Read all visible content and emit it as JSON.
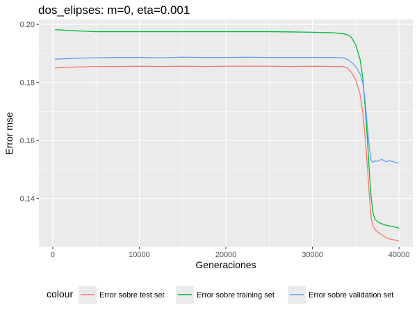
{
  "chart_data": {
    "type": "line",
    "title": "dos_elipses: m=0, eta=0.001",
    "xlabel": "Generaciones",
    "ylabel": "Error mse",
    "xlim": [
      -1600,
      41600
    ],
    "ylim": [
      0.1234,
      0.2017
    ],
    "x_ticks": [
      0,
      10000,
      20000,
      30000,
      40000
    ],
    "x_tick_labels": [
      "0",
      "10000",
      "20000",
      "30000",
      "40000"
    ],
    "y_ticks": [
      0.14,
      0.16,
      0.18,
      0.2
    ],
    "y_tick_labels": [
      "0.14",
      "0.16",
      "0.18",
      "0.20"
    ],
    "grid": true,
    "legend_title": "colour",
    "legend_position": "bottom",
    "series": [
      {
        "name": "Error sobre test set",
        "color": "#F8766D",
        "x": [
          250,
          2500,
          5000,
          7500,
          10000,
          12500,
          15000,
          17500,
          20000,
          22500,
          25000,
          27500,
          30000,
          32500,
          33500,
          34000,
          34500,
          35000,
          35500,
          35800,
          36000,
          36200,
          36400,
          36600,
          36800,
          37000,
          37200,
          37500,
          38000,
          38500,
          39000,
          39500,
          40000
        ],
        "y": [
          0.185,
          0.1853,
          0.1855,
          0.1855,
          0.1856,
          0.1855,
          0.1856,
          0.1855,
          0.1856,
          0.1856,
          0.1856,
          0.1855,
          0.1856,
          0.1855,
          0.1855,
          0.185,
          0.1835,
          0.181,
          0.176,
          0.17,
          0.164,
          0.157,
          0.149,
          0.14,
          0.133,
          0.1305,
          0.1295,
          0.1285,
          0.1275,
          0.1265,
          0.126,
          0.1257,
          0.1253
        ]
      },
      {
        "name": "Error sobre training set",
        "color": "#00BA38",
        "x": [
          250,
          2500,
          5000,
          7500,
          10000,
          12500,
          15000,
          17500,
          20000,
          22500,
          25000,
          27500,
          30000,
          32500,
          33500,
          34000,
          34500,
          35000,
          35500,
          35800,
          36000,
          36200,
          36400,
          36600,
          36800,
          37000,
          37200,
          37500,
          38000,
          38500,
          39000,
          39500,
          40000
        ],
        "y": [
          0.1982,
          0.1978,
          0.1975,
          0.1975,
          0.1975,
          0.1975,
          0.1975,
          0.1975,
          0.1975,
          0.1975,
          0.1975,
          0.1974,
          0.1973,
          0.1971,
          0.1968,
          0.1965,
          0.1955,
          0.193,
          0.188,
          0.182,
          0.175,
          0.167,
          0.158,
          0.148,
          0.14,
          0.135,
          0.133,
          0.132,
          0.1313,
          0.1308,
          0.1305,
          0.1302,
          0.1298
        ]
      },
      {
        "name": "Error sobre validation set",
        "color": "#619CFF",
        "x": [
          250,
          2500,
          5000,
          7500,
          10000,
          12500,
          15000,
          17500,
          20000,
          22500,
          25000,
          27500,
          30000,
          32500,
          33500,
          34000,
          34500,
          35000,
          35500,
          35800,
          36000,
          36200,
          36400,
          36600,
          36800,
          37000,
          37200,
          37500,
          38000,
          38500,
          39000,
          39500,
          40000
        ],
        "y": [
          0.188,
          0.1883,
          0.1885,
          0.1886,
          0.1886,
          0.1885,
          0.1887,
          0.1886,
          0.1886,
          0.1887,
          0.1886,
          0.1886,
          0.1886,
          0.1886,
          0.1885,
          0.188,
          0.187,
          0.1855,
          0.183,
          0.18,
          0.176,
          0.17,
          0.163,
          0.157,
          0.153,
          0.1525,
          0.153,
          0.1528,
          0.1535,
          0.1527,
          0.153,
          0.1525,
          0.1522
        ]
      }
    ]
  }
}
